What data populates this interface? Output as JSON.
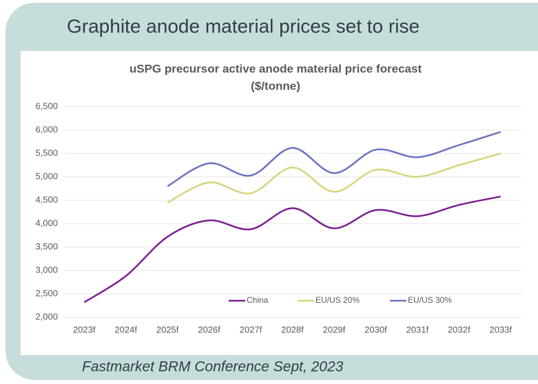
{
  "header": {
    "title": "Graphite anode material prices set to rise"
  },
  "chart_data": {
    "type": "line",
    "title": "uSPG precursor active anode material price forecast",
    "subtitle": "($/tonne)",
    "categories": [
      "2023f",
      "2024f",
      "2025f",
      "2026f",
      "2027f",
      "2028f",
      "2029f",
      "2030f",
      "2031f",
      "2032f",
      "2033f"
    ],
    "series": [
      {
        "name": "China",
        "color": "#7b1f8f",
        "values": [
          2320,
          2880,
          3720,
          4070,
          3880,
          4330,
          3900,
          4290,
          4160,
          4400,
          4580
        ]
      },
      {
        "name": "EU/US 20%",
        "color": "#d6d47c",
        "values": [
          null,
          null,
          4450,
          4880,
          4650,
          5200,
          4680,
          5150,
          5000,
          5250,
          5500
        ]
      },
      {
        "name": "EU/US 30%",
        "color": "#6a73c0",
        "values": [
          null,
          null,
          4800,
          5290,
          5030,
          5620,
          5080,
          5580,
          5420,
          5680,
          5960
        ]
      }
    ],
    "ylim": [
      2000,
      6500
    ],
    "yticks": [
      {
        "value": 2000,
        "label": "2,000"
      },
      {
        "value": 2500,
        "label": "2,500"
      },
      {
        "value": 3000,
        "label": "3,000"
      },
      {
        "value": 3500,
        "label": "3,500"
      },
      {
        "value": 4000,
        "label": "4,000"
      },
      {
        "value": 4500,
        "label": "4,500"
      },
      {
        "value": 5000,
        "label": "5,000"
      },
      {
        "value": 5500,
        "label": "5,500"
      },
      {
        "value": 6000,
        "label": "6,000"
      },
      {
        "value": 6500,
        "label": "6,500"
      }
    ],
    "grid": true,
    "legend": "bottom"
  },
  "footer": {
    "text": "Fastmarket BRM Conference Sept, 2023"
  }
}
